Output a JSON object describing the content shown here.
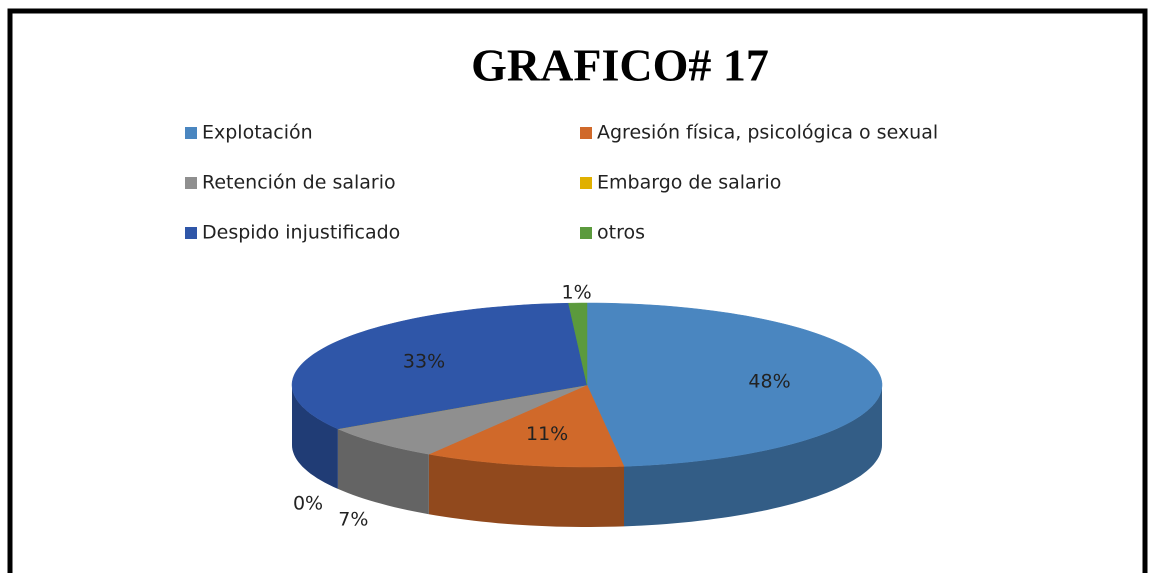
{
  "chart_data": {
    "type": "pie",
    "title": "GRAFICO# 17",
    "categories": [
      "Explotación",
      "Agresión física, psicológica o sexual",
      "Retención de salario",
      "Embargo de salario",
      "Despido injustificado",
      "otros"
    ],
    "values": [
      48,
      11,
      7,
      0,
      33,
      1
    ],
    "value_labels": [
      "48%",
      "11%",
      "7%",
      "0%",
      "33%",
      "1%"
    ],
    "colors": [
      "#4a86c0",
      "#d0692a",
      "#8f8f8f",
      "#e0b000",
      "#2f56a8",
      "#5b9a3d"
    ],
    "legend": "top"
  }
}
